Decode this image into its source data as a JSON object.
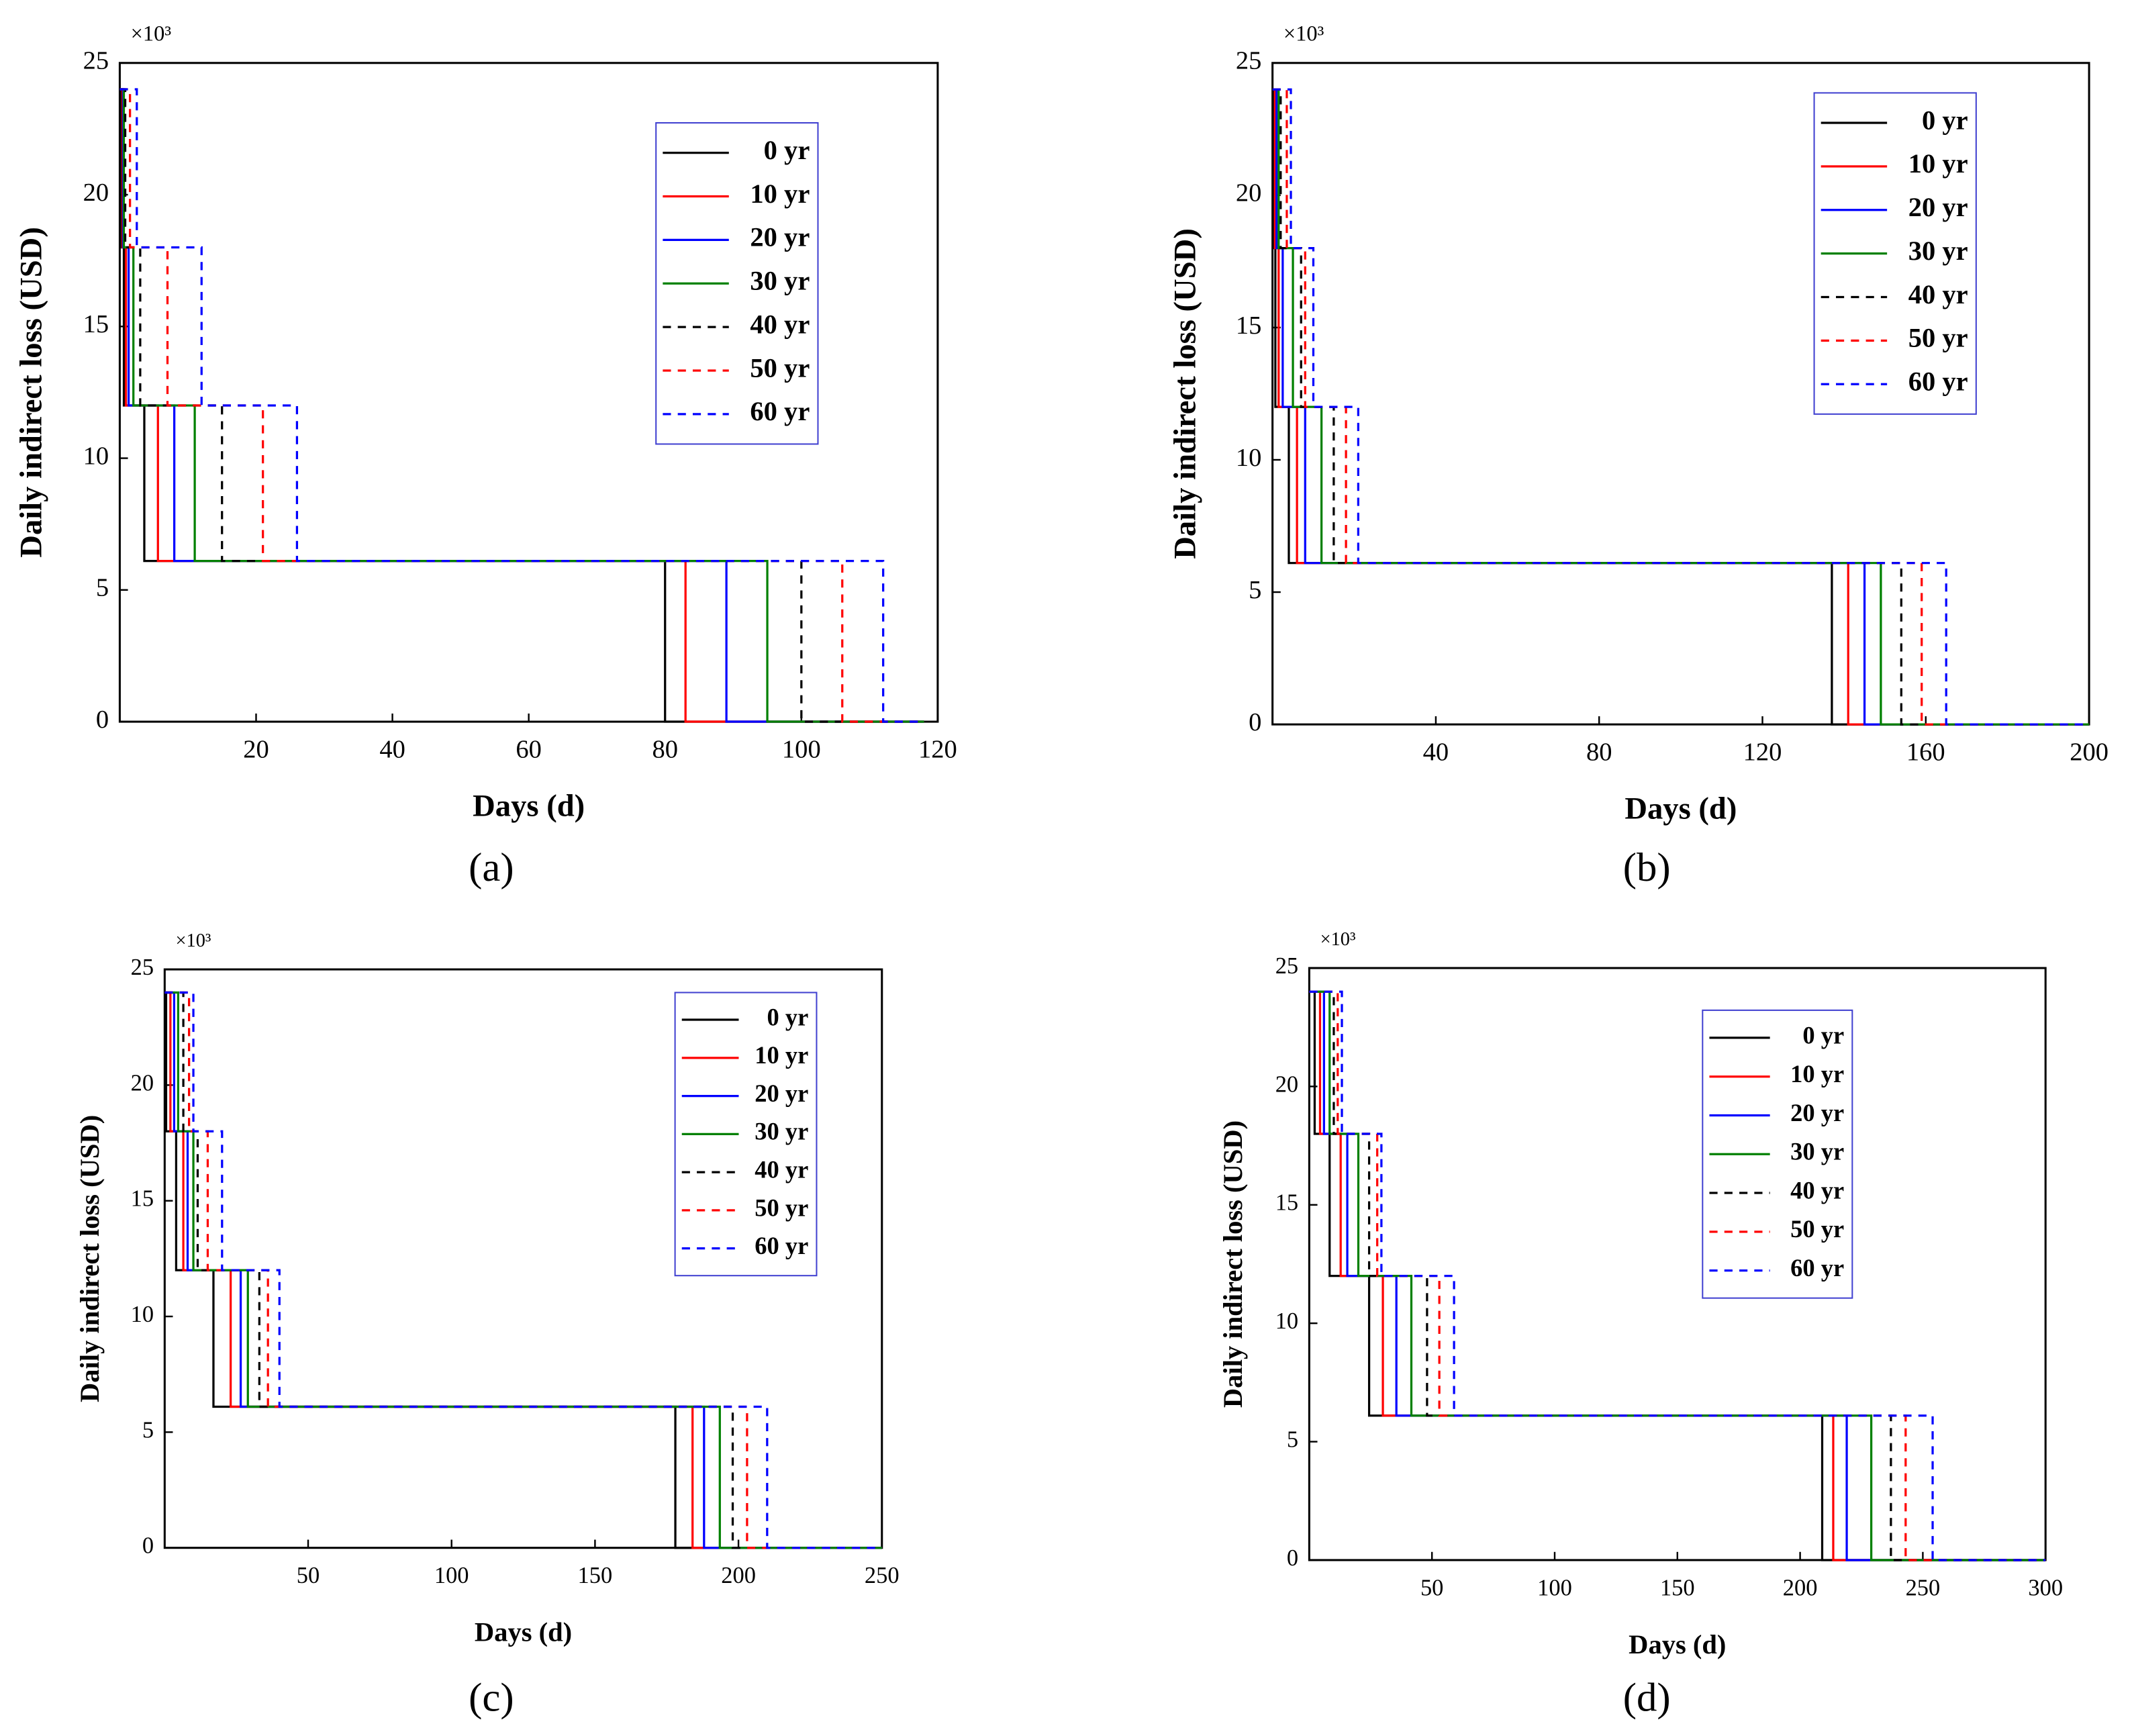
{
  "chart_data": [
    {
      "type": "line",
      "caption": "(a)",
      "xlabel": "Days (d)",
      "ylabel": "Daily indirect loss (USD)",
      "y_multiplier": "×10³",
      "xlim": [
        0,
        120
      ],
      "xticks": [
        20,
        40,
        60,
        80,
        100,
        120
      ],
      "ylim": [
        0,
        25
      ],
      "yticks": [
        0,
        5,
        10,
        15,
        20,
        25
      ],
      "legend": "upper right",
      "series": [
        {
          "name": "0 yr",
          "color": "#000000",
          "dashed": false,
          "x": [
            0,
            0.3,
            0.3,
            0.6,
            0.6,
            3.6,
            3.6,
            80,
            80,
            118
          ],
          "values": [
            24,
            24,
            18,
            18,
            12,
            12,
            6.1,
            6.1,
            0,
            0
          ]
        },
        {
          "name": "10 yr",
          "color": "#ff0000",
          "dashed": false,
          "x": [
            0,
            0.4,
            0.4,
            0.9,
            0.9,
            5.6,
            5.6,
            83,
            83,
            118
          ],
          "values": [
            24,
            24,
            18,
            18,
            12,
            12,
            6.1,
            6.1,
            0,
            0
          ]
        },
        {
          "name": "20 yr",
          "color": "#0000ff",
          "dashed": false,
          "x": [
            0,
            0.5,
            0.5,
            1.3,
            1.3,
            8,
            8,
            89,
            89,
            118
          ],
          "values": [
            24,
            24,
            18,
            18,
            12,
            12,
            6.1,
            6.1,
            0,
            0
          ]
        },
        {
          "name": "30 yr",
          "color": "#008000",
          "dashed": false,
          "x": [
            0,
            0.6,
            0.6,
            2,
            2,
            11,
            11,
            95,
            95,
            118
          ],
          "values": [
            24,
            24,
            18,
            18,
            12,
            12,
            6.1,
            6.1,
            0,
            0
          ]
        },
        {
          "name": "40 yr",
          "color": "#000000",
          "dashed": true,
          "x": [
            0,
            0.8,
            0.8,
            3,
            3,
            15,
            15,
            100,
            100,
            118
          ],
          "values": [
            24,
            24,
            18,
            18,
            12,
            12,
            6.1,
            6.1,
            0,
            0
          ]
        },
        {
          "name": "50 yr",
          "color": "#ff0000",
          "dashed": true,
          "x": [
            0,
            1.5,
            1.5,
            7,
            7,
            21,
            21,
            106,
            106,
            118
          ],
          "values": [
            24,
            24,
            18,
            18,
            12,
            12,
            6.1,
            6.1,
            0,
            0
          ]
        },
        {
          "name": "60 yr",
          "color": "#0000ff",
          "dashed": true,
          "x": [
            0,
            2.5,
            2.5,
            12,
            12,
            26,
            26,
            112,
            112,
            118
          ],
          "values": [
            24,
            24,
            18,
            18,
            12,
            12,
            6.1,
            6.1,
            0,
            0
          ]
        }
      ]
    },
    {
      "type": "line",
      "caption": "(b)",
      "xlabel": "Days (d)",
      "ylabel": "Daily indirect loss (USD)",
      "y_multiplier": "×10³",
      "xlim": [
        0,
        200
      ],
      "xticks": [
        40,
        80,
        120,
        160,
        200
      ],
      "ylim": [
        0,
        25
      ],
      "yticks": [
        0,
        5,
        10,
        15,
        20,
        25
      ],
      "legend": "upper right",
      "series": [
        {
          "name": "0 yr",
          "color": "#000000",
          "dashed": false,
          "x": [
            0,
            0.3,
            0.3,
            0.7,
            0.7,
            4,
            4,
            137,
            137,
            200
          ],
          "values": [
            24,
            24,
            18,
            18,
            12,
            12,
            6.1,
            6.1,
            0,
            0
          ]
        },
        {
          "name": "10 yr",
          "color": "#ff0000",
          "dashed": false,
          "x": [
            0,
            0.6,
            0.6,
            1.5,
            1.5,
            6,
            6,
            141,
            141,
            200
          ],
          "values": [
            24,
            24,
            18,
            18,
            12,
            12,
            6.1,
            6.1,
            0,
            0
          ]
        },
        {
          "name": "20 yr",
          "color": "#0000ff",
          "dashed": false,
          "x": [
            0,
            1,
            1,
            2.5,
            2.5,
            8,
            8,
            145,
            145,
            200
          ],
          "values": [
            24,
            24,
            18,
            18,
            12,
            12,
            6.1,
            6.1,
            0,
            0
          ]
        },
        {
          "name": "30 yr",
          "color": "#008000",
          "dashed": false,
          "x": [
            0,
            1.5,
            1.5,
            5,
            5,
            12,
            12,
            149,
            149,
            200
          ],
          "values": [
            24,
            24,
            18,
            18,
            12,
            12,
            6.1,
            6.1,
            0,
            0
          ]
        },
        {
          "name": "40 yr",
          "color": "#000000",
          "dashed": true,
          "x": [
            0,
            2,
            2,
            7,
            7,
            15,
            15,
            154,
            154,
            200
          ],
          "values": [
            24,
            24,
            18,
            18,
            12,
            12,
            6.1,
            6.1,
            0,
            0
          ]
        },
        {
          "name": "50 yr",
          "color": "#ff0000",
          "dashed": true,
          "x": [
            0,
            3.5,
            3.5,
            8,
            8,
            18,
            18,
            159,
            159,
            200
          ],
          "values": [
            24,
            24,
            18,
            18,
            12,
            12,
            6.1,
            6.1,
            0,
            0
          ]
        },
        {
          "name": "60 yr",
          "color": "#0000ff",
          "dashed": true,
          "x": [
            0,
            4.5,
            4.5,
            10,
            10,
            21,
            21,
            165,
            165,
            200
          ],
          "values": [
            24,
            24,
            18,
            18,
            12,
            12,
            6.1,
            6.1,
            0,
            0
          ]
        }
      ]
    },
    {
      "type": "line",
      "caption": "(c)",
      "xlabel": "Days (d)",
      "ylabel": "Daily indirect loss (USD)",
      "y_multiplier": "×10³",
      "xlim": [
        0,
        250
      ],
      "xticks": [
        50,
        100,
        150,
        200,
        250
      ],
      "ylim": [
        0,
        25
      ],
      "yticks": [
        0,
        5,
        10,
        15,
        20,
        25
      ],
      "legend": "upper right",
      "series": [
        {
          "name": "0 yr",
          "color": "#000000",
          "dashed": false,
          "x": [
            0,
            0.5,
            0.5,
            4,
            4,
            17,
            17,
            178,
            178,
            250
          ],
          "values": [
            24,
            24,
            18,
            18,
            12,
            12,
            6.1,
            6.1,
            0,
            0
          ]
        },
        {
          "name": "10 yr",
          "color": "#ff0000",
          "dashed": false,
          "x": [
            0,
            2,
            2,
            6.5,
            6.5,
            23,
            23,
            184,
            184,
            250
          ],
          "values": [
            24,
            24,
            18,
            18,
            12,
            12,
            6.1,
            6.1,
            0,
            0
          ]
        },
        {
          "name": "20 yr",
          "color": "#0000ff",
          "dashed": false,
          "x": [
            0,
            3.3,
            3.3,
            8,
            8,
            26.5,
            26.5,
            188,
            188,
            250
          ],
          "values": [
            24,
            24,
            18,
            18,
            12,
            12,
            6.1,
            6.1,
            0,
            0
          ]
        },
        {
          "name": "30 yr",
          "color": "#008000",
          "dashed": false,
          "x": [
            0,
            4.7,
            4.7,
            10,
            10,
            29,
            29,
            193.5,
            193.5,
            250
          ],
          "values": [
            24,
            24,
            18,
            18,
            12,
            12,
            6.1,
            6.1,
            0,
            0
          ]
        },
        {
          "name": "40 yr",
          "color": "#000000",
          "dashed": true,
          "x": [
            0,
            6.5,
            6.5,
            11.5,
            11.5,
            33,
            33,
            198,
            198,
            250
          ],
          "values": [
            24,
            24,
            18,
            18,
            12,
            12,
            6.1,
            6.1,
            0,
            0
          ]
        },
        {
          "name": "50 yr",
          "color": "#ff0000",
          "dashed": true,
          "x": [
            0,
            8.5,
            8.5,
            15,
            15,
            36,
            36,
            203,
            203,
            250
          ],
          "values": [
            24,
            24,
            18,
            18,
            12,
            12,
            6.1,
            6.1,
            0,
            0
          ]
        },
        {
          "name": "60 yr",
          "color": "#0000ff",
          "dashed": true,
          "x": [
            0,
            10,
            10,
            20,
            20,
            40,
            40,
            210,
            210,
            250
          ],
          "values": [
            24,
            24,
            18,
            18,
            12,
            12,
            6.1,
            6.1,
            0,
            0
          ]
        }
      ]
    },
    {
      "type": "line",
      "caption": "(d)",
      "xlabel": "Days (d)",
      "ylabel": "Daily indirect loss (USD)",
      "y_multiplier": "×10³",
      "xlim": [
        0,
        300
      ],
      "xticks": [
        50,
        100,
        150,
        200,
        250,
        300
      ],
      "ylim": [
        0,
        25
      ],
      "yticks": [
        0,
        5,
        10,
        15,
        20,
        25
      ],
      "legend": "upper right",
      "series": [
        {
          "name": "0 yr",
          "color": "#000000",
          "dashed": false,
          "x": [
            0,
            2.2,
            2.2,
            8.3,
            8.3,
            24.4,
            24.4,
            209,
            209,
            300
          ],
          "values": [
            24,
            24,
            18,
            18,
            12,
            12,
            6.1,
            6.1,
            0,
            0
          ]
        },
        {
          "name": "10 yr",
          "color": "#ff0000",
          "dashed": false,
          "x": [
            0,
            4.4,
            4.4,
            12.8,
            12.8,
            30,
            30,
            213.5,
            213.5,
            300
          ],
          "values": [
            24,
            24,
            18,
            18,
            12,
            12,
            6.1,
            6.1,
            0,
            0
          ]
        },
        {
          "name": "20 yr",
          "color": "#0000ff",
          "dashed": false,
          "x": [
            0,
            6,
            6,
            15.5,
            15.5,
            35.5,
            35.5,
            219,
            219,
            300
          ],
          "values": [
            24,
            24,
            18,
            18,
            12,
            12,
            6.1,
            6.1,
            0,
            0
          ]
        },
        {
          "name": "30 yr",
          "color": "#008000",
          "dashed": false,
          "x": [
            0,
            8.3,
            8.3,
            20,
            20,
            41.6,
            41.6,
            229,
            229,
            300
          ],
          "values": [
            24,
            24,
            18,
            18,
            12,
            12,
            6.1,
            6.1,
            0,
            0
          ]
        },
        {
          "name": "40 yr",
          "color": "#000000",
          "dashed": true,
          "x": [
            0,
            10,
            10,
            24.4,
            24.4,
            48,
            48,
            237,
            237,
            300
          ],
          "values": [
            24,
            24,
            18,
            18,
            12,
            12,
            6.1,
            6.1,
            0,
            0
          ]
        },
        {
          "name": "50 yr",
          "color": "#ff0000",
          "dashed": true,
          "x": [
            0,
            11.6,
            11.6,
            27.7,
            27.7,
            53,
            53,
            243,
            243,
            300
          ],
          "values": [
            24,
            24,
            18,
            18,
            12,
            12,
            6.1,
            6.1,
            0,
            0
          ]
        },
        {
          "name": "60 yr",
          "color": "#0000ff",
          "dashed": true,
          "x": [
            0,
            13.3,
            13.3,
            29.4,
            29.4,
            59,
            59,
            254,
            254,
            300
          ],
          "values": [
            24,
            24,
            18,
            18,
            12,
            12,
            6.1,
            6.1,
            0,
            0
          ]
        }
      ]
    }
  ]
}
